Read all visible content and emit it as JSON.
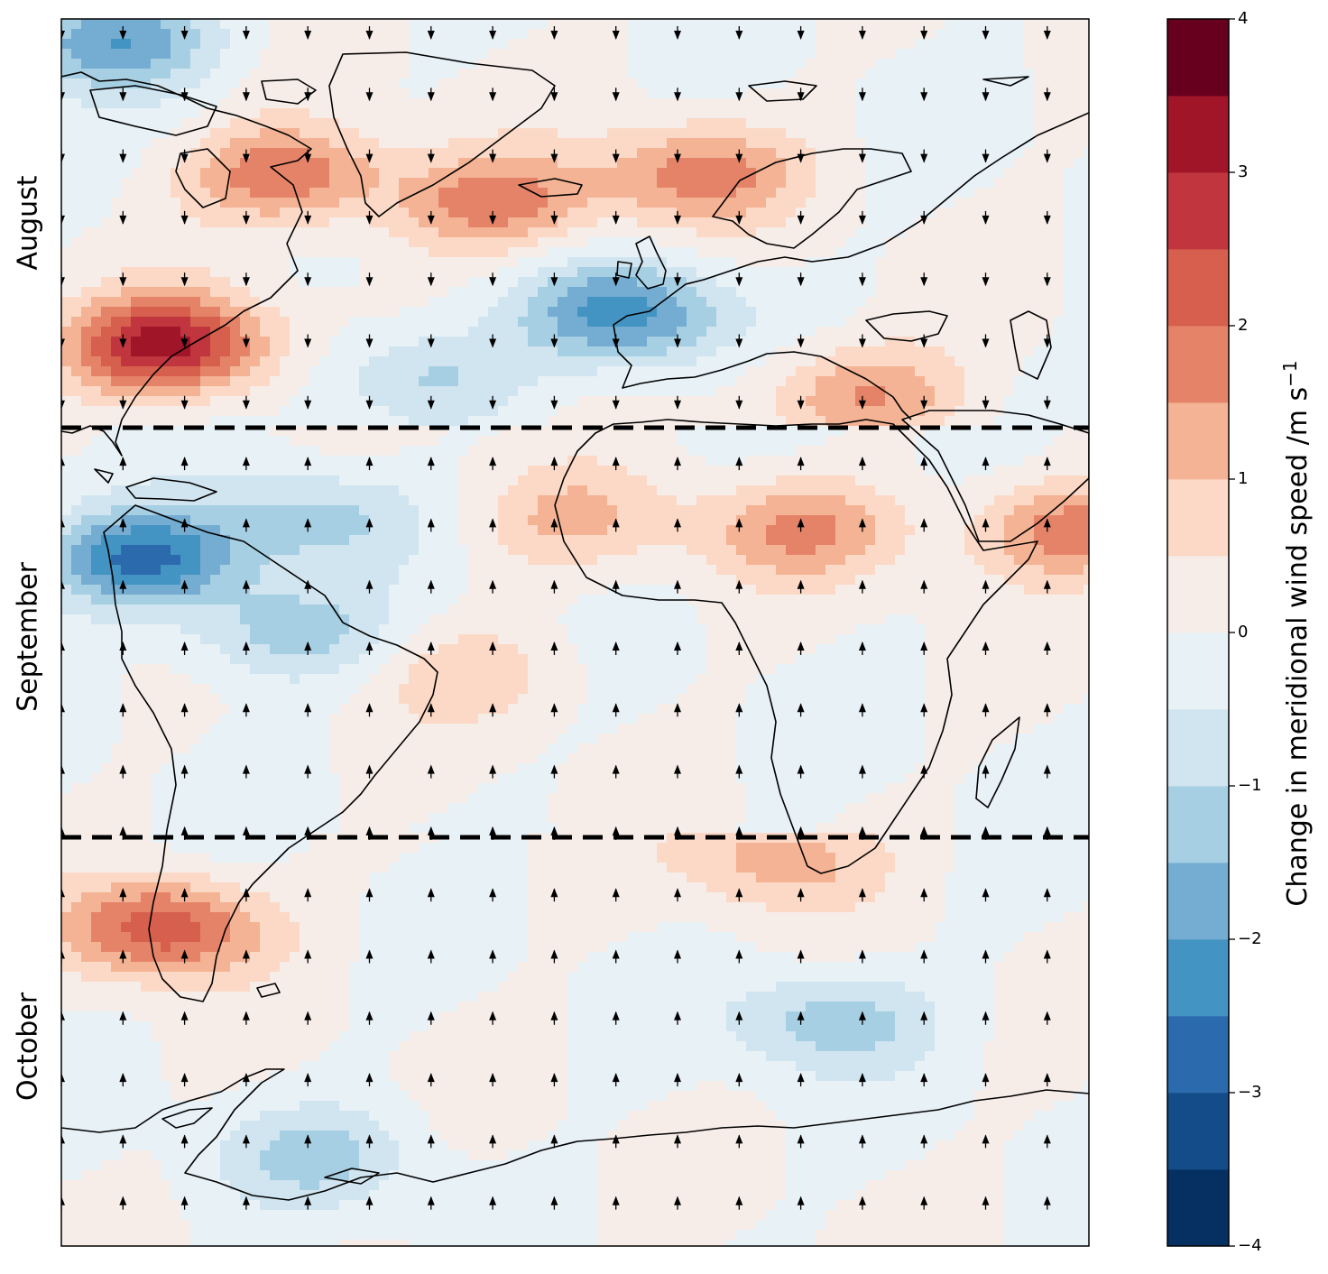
{
  "panel_labels": [
    "August",
    "September",
    "October"
  ],
  "colorbar": {
    "title": "Change in meridional wind speed /m s",
    "title_exponent": "−1",
    "ticks": [
      {
        "value": 4,
        "label": "4"
      },
      {
        "value": 3,
        "label": "3"
      },
      {
        "value": 2,
        "label": "2"
      },
      {
        "value": 1,
        "label": "1"
      },
      {
        "value": 0,
        "label": "0"
      },
      {
        "value": -1,
        "label": "−1"
      },
      {
        "value": -2,
        "label": "−2"
      },
      {
        "value": -3,
        "label": "−3"
      },
      {
        "value": -4,
        "label": "−4"
      }
    ],
    "levels": [
      -4,
      -3.5,
      -3,
      -2.5,
      -2,
      -1.5,
      -1,
      -0.5,
      0,
      0.5,
      1,
      1.5,
      2,
      2.5,
      3,
      3.5,
      4
    ],
    "colors": [
      "#053061",
      "#134c88",
      "#2b6aad",
      "#4393c3",
      "#74add1",
      "#a6cfe3",
      "#d1e5f0",
      "#e8f1f6",
      "#f7ede8",
      "#fbd9c6",
      "#f4b394",
      "#e58368",
      "#d6604d",
      "#c0353e",
      "#a11528",
      "#67001f"
    ]
  },
  "map": {
    "continent_outline_color": "#000000",
    "panel_separator_style": "dashed black",
    "arrow_direction_by_panel": [
      "down",
      "up",
      "up"
    ],
    "anomaly_features": [
      {
        "panel": 0,
        "region": "US east coast",
        "value": 3.2
      },
      {
        "panel": 0,
        "region": "Labrador Sea",
        "value": 2.0
      },
      {
        "panel": 0,
        "region": "south of Greenland",
        "value": 1.8
      },
      {
        "panel": 0,
        "region": "Norwegian Sea",
        "value": 1.7
      },
      {
        "panel": 0,
        "region": "Bay of Biscay",
        "value": -2.2
      },
      {
        "panel": 0,
        "region": "central North Atlantic",
        "value": -1.2
      },
      {
        "panel": 0,
        "region": "Arctic north of Canada",
        "value": -2.0
      },
      {
        "panel": 0,
        "region": "eastern Mediterranean",
        "value": 1.6
      },
      {
        "panel": 1,
        "region": "Caribbean",
        "value": -2.6
      },
      {
        "panel": 1,
        "region": "tropical Atlantic",
        "value": -1.1
      },
      {
        "panel": 1,
        "region": "Amazon",
        "value": -1.3
      },
      {
        "panel": 1,
        "region": "Arabian Sea",
        "value": 1.8
      },
      {
        "panel": 1,
        "region": "Sahel",
        "value": 1.5
      },
      {
        "panel": 1,
        "region": "West Africa coast",
        "value": 1.0
      },
      {
        "panel": 1,
        "region": "South Atlantic",
        "value": 0.8
      },
      {
        "panel": 2,
        "region": "Chile coast",
        "value": 2.4
      },
      {
        "panel": 2,
        "region": "Southern Ocean",
        "value": -1.3
      },
      {
        "panel": 2,
        "region": "off South Africa",
        "value": 1.3
      },
      {
        "panel": 2,
        "region": "Weddell Sea",
        "value": -1.1
      }
    ]
  }
}
